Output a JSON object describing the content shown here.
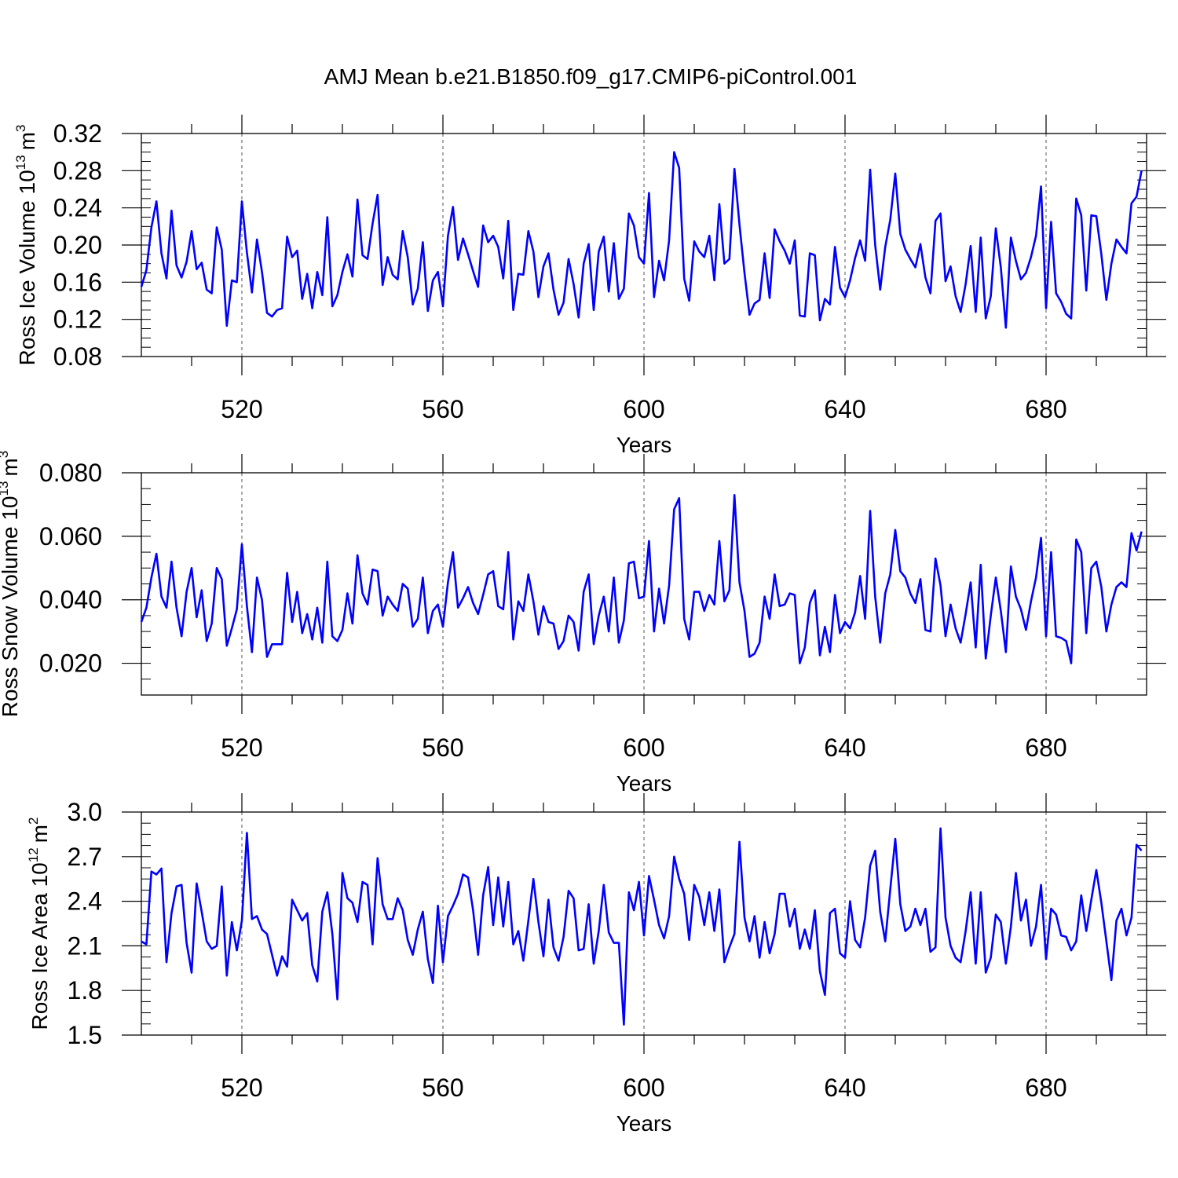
{
  "figure": {
    "title": "AMJ Mean b.e21.B1850.f09_g17.CMIP6-piControl.001"
  },
  "chart_data": [
    {
      "type": "line",
      "ylabel": "Ross Ice Volume",
      "ylabel_base": "10",
      "ylabel_exp": "13",
      "ylabel_unit": "m",
      "ylabel_unit_exp": "3",
      "xlabel": "Years",
      "xlim": [
        500,
        700
      ],
      "ylim": [
        0.08,
        0.32
      ],
      "xticks": [
        520,
        560,
        600,
        640,
        680
      ],
      "xtick_labels": [
        "520",
        "560",
        "600",
        "640",
        "680"
      ],
      "yticks": [
        0.08,
        0.12,
        0.16,
        0.2,
        0.24,
        0.28,
        0.32
      ],
      "ytick_labels": [
        "0.08",
        "0.12",
        "0.16",
        "0.20",
        "0.24",
        "0.28",
        "0.32"
      ],
      "yminor_step": 0.01,
      "grid": "vertical dashed at major x ticks",
      "line_color": "#0000ff",
      "x_start": 500,
      "x_step": 1,
      "values": [
        0.155,
        0.173,
        0.219,
        0.247,
        0.191,
        0.164,
        0.237,
        0.178,
        0.165,
        0.182,
        0.215,
        0.174,
        0.181,
        0.152,
        0.148,
        0.219,
        0.195,
        0.113,
        0.162,
        0.16,
        0.247,
        0.192,
        0.149,
        0.206,
        0.171,
        0.127,
        0.123,
        0.13,
        0.132,
        0.209,
        0.187,
        0.194,
        0.142,
        0.169,
        0.132,
        0.171,
        0.146,
        0.23,
        0.134,
        0.146,
        0.171,
        0.19,
        0.166,
        0.249,
        0.189,
        0.185,
        0.223,
        0.254,
        0.157,
        0.187,
        0.168,
        0.163,
        0.215,
        0.187,
        0.136,
        0.153,
        0.203,
        0.129,
        0.162,
        0.171,
        0.134,
        0.21,
        0.241,
        0.184,
        0.207,
        0.19,
        0.172,
        0.155,
        0.221,
        0.203,
        0.21,
        0.198,
        0.164,
        0.226,
        0.13,
        0.169,
        0.168,
        0.215,
        0.193,
        0.144,
        0.177,
        0.191,
        0.152,
        0.125,
        0.138,
        0.185,
        0.158,
        0.122,
        0.18,
        0.201,
        0.13,
        0.193,
        0.209,
        0.15,
        0.202,
        0.142,
        0.153,
        0.234,
        0.221,
        0.187,
        0.18,
        0.256,
        0.144,
        0.183,
        0.162,
        0.205,
        0.3,
        0.283,
        0.164,
        0.14,
        0.204,
        0.193,
        0.187,
        0.21,
        0.162,
        0.244,
        0.18,
        0.185,
        0.282,
        0.222,
        0.17,
        0.125,
        0.137,
        0.141,
        0.191,
        0.143,
        0.217,
        0.204,
        0.194,
        0.18,
        0.205,
        0.124,
        0.123,
        0.191,
        0.189,
        0.119,
        0.142,
        0.136,
        0.198,
        0.154,
        0.144,
        0.162,
        0.186,
        0.205,
        0.183,
        0.281,
        0.2,
        0.152,
        0.198,
        0.227,
        0.277,
        0.212,
        0.195,
        0.185,
        0.176,
        0.201,
        0.165,
        0.148,
        0.226,
        0.234,
        0.161,
        0.177,
        0.145,
        0.128,
        0.158,
        0.199,
        0.128,
        0.208,
        0.121,
        0.145,
        0.218,
        0.176,
        0.111,
        0.208,
        0.183,
        0.163,
        0.17,
        0.187,
        0.21,
        0.263,
        0.132,
        0.225,
        0.148,
        0.139,
        0.126,
        0.121,
        0.25,
        0.232,
        0.151,
        0.232,
        0.231,
        0.19,
        0.141,
        0.18,
        0.206,
        0.198,
        0.191,
        0.245,
        0.252,
        0.28
      ]
    },
    {
      "type": "line",
      "ylabel": "Ross Snow Volume",
      "ylabel_base": "10",
      "ylabel_exp": "13",
      "ylabel_unit": "m",
      "ylabel_unit_exp": "3",
      "xlabel": "Years",
      "xlim": [
        500,
        700
      ],
      "ylim": [
        0.01,
        0.08
      ],
      "xticks": [
        520,
        560,
        600,
        640,
        680
      ],
      "xtick_labels": [
        "520",
        "560",
        "600",
        "640",
        "680"
      ],
      "yticks": [
        0.02,
        0.04,
        0.06,
        0.08
      ],
      "ytick_labels": [
        "0.020",
        "0.040",
        "0.060",
        "0.080"
      ],
      "yminor_step": 0.005,
      "grid": "vertical dashed at major x ticks",
      "line_color": "#0000ff",
      "x_start": 500,
      "x_step": 1,
      "values": [
        0.033,
        0.0375,
        0.047,
        0.0545,
        0.041,
        0.0375,
        0.052,
        0.0375,
        0.0285,
        0.0425,
        0.05,
        0.0345,
        0.043,
        0.027,
        0.0325,
        0.05,
        0.0465,
        0.0255,
        0.031,
        0.037,
        0.0575,
        0.038,
        0.0235,
        0.047,
        0.04,
        0.022,
        0.026,
        0.026,
        0.026,
        0.0485,
        0.033,
        0.0425,
        0.0295,
        0.0355,
        0.0275,
        0.0375,
        0.0265,
        0.052,
        0.0285,
        0.027,
        0.0305,
        0.042,
        0.0325,
        0.054,
        0.042,
        0.0385,
        0.0495,
        0.049,
        0.035,
        0.041,
        0.0385,
        0.0365,
        0.045,
        0.0435,
        0.0315,
        0.034,
        0.047,
        0.0295,
        0.0365,
        0.0385,
        0.0315,
        0.0455,
        0.055,
        0.0375,
        0.0405,
        0.044,
        0.039,
        0.0355,
        0.0415,
        0.048,
        0.049,
        0.038,
        0.037,
        0.055,
        0.0275,
        0.0395,
        0.0365,
        0.048,
        0.0395,
        0.029,
        0.038,
        0.033,
        0.0325,
        0.0245,
        0.027,
        0.035,
        0.033,
        0.024,
        0.0425,
        0.048,
        0.026,
        0.035,
        0.041,
        0.03,
        0.047,
        0.0265,
        0.0335,
        0.0515,
        0.052,
        0.0405,
        0.041,
        0.0585,
        0.03,
        0.0435,
        0.0325,
        0.0445,
        0.0685,
        0.072,
        0.034,
        0.0275,
        0.0425,
        0.0425,
        0.0365,
        0.0415,
        0.0385,
        0.0585,
        0.0395,
        0.043,
        0.073,
        0.0455,
        0.0365,
        0.022,
        0.023,
        0.0265,
        0.041,
        0.034,
        0.048,
        0.038,
        0.0385,
        0.042,
        0.0415,
        0.02,
        0.025,
        0.039,
        0.043,
        0.0225,
        0.0315,
        0.0235,
        0.0415,
        0.0295,
        0.033,
        0.031,
        0.036,
        0.0475,
        0.034,
        0.068,
        0.041,
        0.0265,
        0.042,
        0.048,
        0.062,
        0.049,
        0.047,
        0.042,
        0.039,
        0.0465,
        0.0305,
        0.03,
        0.053,
        0.0445,
        0.0285,
        0.0385,
        0.031,
        0.0265,
        0.0355,
        0.0455,
        0.025,
        0.051,
        0.0215,
        0.035,
        0.047,
        0.0365,
        0.0235,
        0.0505,
        0.041,
        0.037,
        0.0305,
        0.0395,
        0.047,
        0.0595,
        0.0285,
        0.055,
        0.0285,
        0.028,
        0.027,
        0.02,
        0.059,
        0.055,
        0.0295,
        0.05,
        0.052,
        0.044,
        0.03,
        0.0385,
        0.044,
        0.0455,
        0.044,
        0.061,
        0.0555,
        0.0615
      ]
    },
    {
      "type": "line",
      "ylabel": "Ross Ice Area",
      "ylabel_base": "10",
      "ylabel_exp": "12",
      "ylabel_unit": "m",
      "ylabel_unit_exp": "2",
      "xlabel": "Years",
      "xlim": [
        500,
        700
      ],
      "ylim": [
        1.5,
        3.0
      ],
      "xticks": [
        520,
        560,
        600,
        640,
        680
      ],
      "xtick_labels": [
        "520",
        "560",
        "600",
        "640",
        "680"
      ],
      "yticks": [
        1.5,
        1.8,
        2.1,
        2.4,
        2.7,
        3.0
      ],
      "ytick_labels": [
        "1.5",
        "1.8",
        "2.1",
        "2.4",
        "2.7",
        "3.0"
      ],
      "yminor_step": 0.075,
      "grid": "vertical dashed at major x ticks",
      "line_color": "#0000ff",
      "x_start": 500,
      "x_step": 1,
      "values": [
        2.13,
        2.11,
        2.6,
        2.58,
        2.62,
        1.99,
        2.32,
        2.5,
        2.51,
        2.12,
        1.92,
        2.52,
        2.33,
        2.13,
        2.08,
        2.1,
        2.5,
        1.9,
        2.26,
        2.07,
        2.27,
        2.86,
        2.28,
        2.3,
        2.21,
        2.18,
        2.04,
        1.9,
        2.03,
        1.96,
        2.41,
        2.34,
        2.27,
        2.32,
        1.97,
        1.86,
        2.33,
        2.46,
        2.18,
        1.74,
        2.59,
        2.42,
        2.39,
        2.26,
        2.53,
        2.51,
        2.11,
        2.69,
        2.38,
        2.28,
        2.28,
        2.42,
        2.34,
        2.14,
        2.04,
        2.21,
        2.33,
        2.01,
        1.85,
        2.37,
        1.99,
        2.3,
        2.37,
        2.45,
        2.58,
        2.56,
        2.34,
        2.04,
        2.44,
        2.63,
        2.24,
        2.56,
        2.23,
        2.53,
        2.11,
        2.2,
        2.0,
        2.27,
        2.55,
        2.26,
        2.03,
        2.41,
        2.09,
        2.0,
        2.16,
        2.47,
        2.42,
        2.07,
        2.08,
        2.38,
        1.98,
        2.2,
        2.51,
        2.19,
        2.12,
        2.12,
        1.57,
        2.46,
        2.34,
        2.53,
        2.17,
        2.57,
        2.41,
        2.24,
        2.15,
        2.3,
        2.7,
        2.55,
        2.45,
        2.14,
        2.51,
        2.43,
        2.24,
        2.46,
        2.2,
        2.48,
        1.99,
        2.09,
        2.18,
        2.8,
        2.29,
        2.13,
        2.3,
        2.02,
        2.26,
        2.05,
        2.18,
        2.45,
        2.45,
        2.23,
        2.35,
        2.08,
        2.21,
        2.08,
        2.34,
        1.93,
        1.77,
        2.32,
        2.35,
        2.05,
        2.02,
        2.4,
        2.14,
        2.09,
        2.29,
        2.64,
        2.74,
        2.33,
        2.13,
        2.48,
        2.82,
        2.38,
        2.2,
        2.23,
        2.35,
        2.24,
        2.35,
        2.06,
        2.09,
        2.89,
        2.29,
        2.1,
        2.02,
        1.99,
        2.2,
        2.46,
        1.98,
        2.46,
        1.92,
        2.02,
        2.31,
        2.26,
        1.98,
        2.23,
        2.59,
        2.27,
        2.41,
        2.1,
        2.23,
        2.51,
        2.01,
        2.35,
        2.31,
        2.17,
        2.16,
        2.07,
        2.13,
        2.44,
        2.2,
        2.41,
        2.61,
        2.39,
        2.13,
        1.87,
        2.27,
        2.35,
        2.17,
        2.29,
        2.78,
        2.74
      ]
    }
  ]
}
